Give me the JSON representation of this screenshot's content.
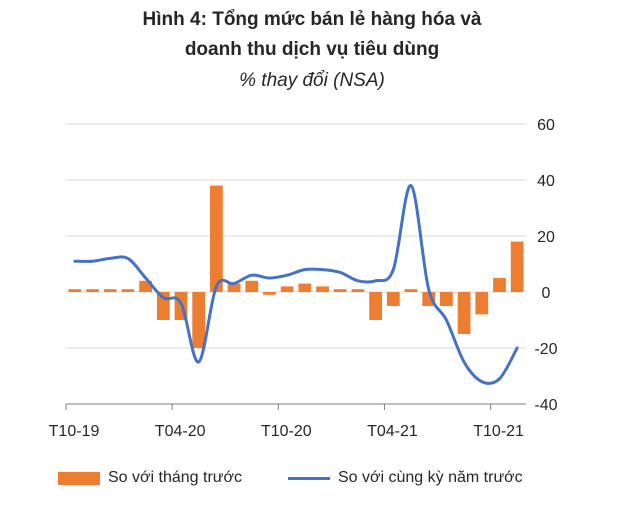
{
  "title_line1": "Hình 4: Tổng mức bán lẻ hàng hóa và",
  "title_line2": "doanh thu dịch vụ tiêu dùng",
  "subtitle": "% thay đổi (NSA)",
  "colors": {
    "bar": "#ED7D31",
    "line": "#4472C4",
    "grid": "#D9D9D9",
    "axis": "#7F7F7F"
  },
  "chart_data": {
    "type": "bar+line",
    "y_axis": {
      "side": "right",
      "ylim": [
        -40,
        60
      ],
      "ticks": [
        "60",
        "40",
        "20",
        "0",
        "-20",
        "-40"
      ],
      "tick_values": [
        60,
        40,
        20,
        0,
        -20,
        -40
      ],
      "grid": true
    },
    "x_tick_labels": [
      {
        "label": "T10-19",
        "index": 0
      },
      {
        "label": "T04-20",
        "index": 6
      },
      {
        "label": "T10-20",
        "index": 12
      },
      {
        "label": "T04-21",
        "index": 18
      },
      {
        "label": "T10-21",
        "index": 24
      }
    ],
    "series": [
      {
        "name": "So với tháng trước",
        "kind": "bar",
        "values": [
          1,
          1,
          1,
          1,
          4,
          -10,
          -10,
          -20,
          38,
          3,
          4,
          -1,
          2,
          3,
          2,
          1,
          1,
          -10,
          -5,
          1,
          -5,
          -5,
          -15,
          -8,
          5,
          18
        ]
      },
      {
        "name": "So với cùng kỳ năm trước",
        "kind": "line",
        "values": [
          11,
          11,
          12,
          12,
          5,
          -2,
          -4,
          -25,
          2,
          3,
          6,
          5,
          6,
          8,
          8,
          7,
          4,
          4,
          8,
          38,
          1,
          -10,
          -25,
          -32,
          -31,
          -20
        ]
      }
    ]
  },
  "legend": {
    "bar_label": "So với tháng trước",
    "line_label": "So với cùng kỳ năm trước",
    "position": "bottom"
  }
}
